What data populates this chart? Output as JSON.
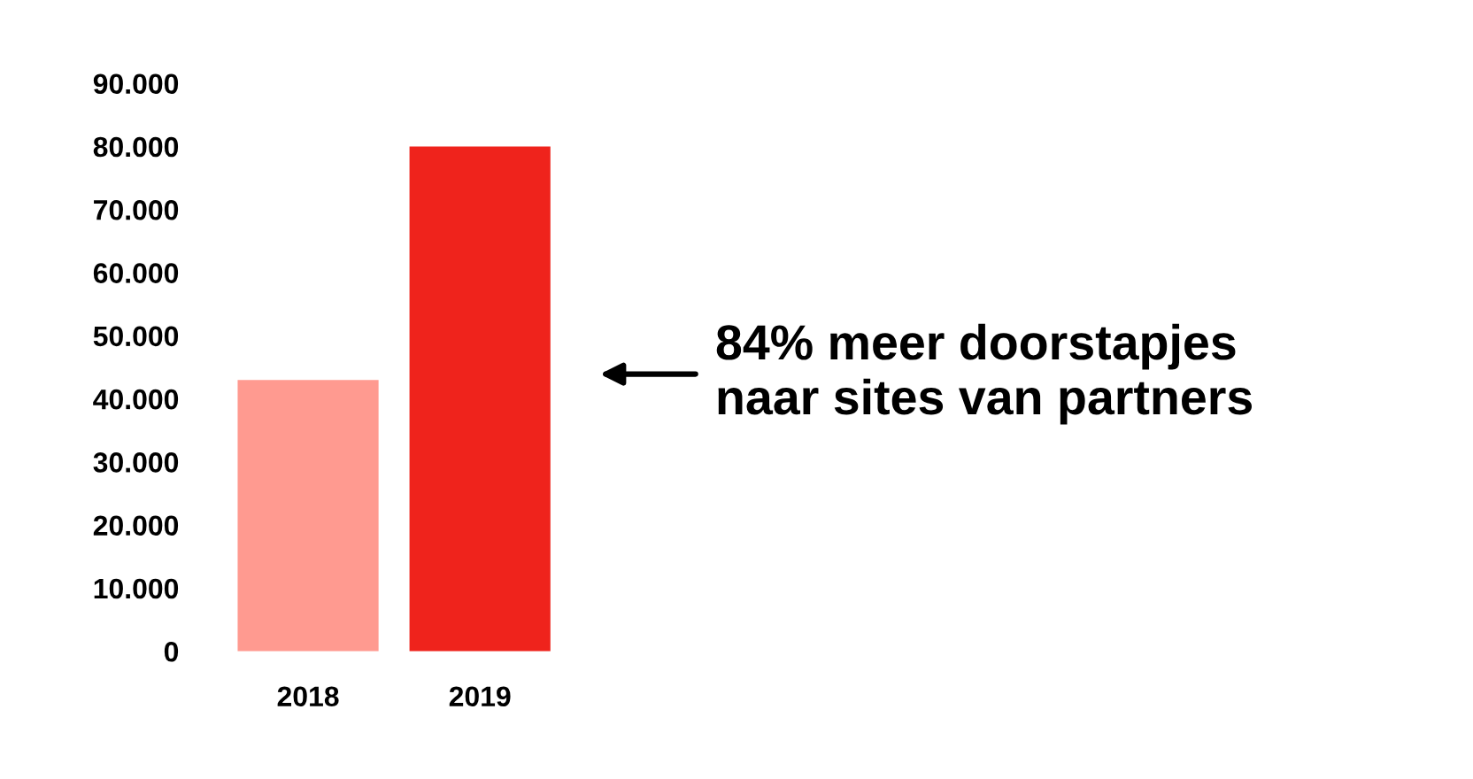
{
  "chart_data": {
    "type": "bar",
    "categories": [
      "2018",
      "2019"
    ],
    "values": [
      43000,
      80000
    ],
    "colors": [
      "#ff9a90",
      "#ef231c"
    ],
    "ylim": [
      0,
      90000
    ],
    "yticks": [
      {
        "value": 0,
        "label": "0"
      },
      {
        "value": 10000,
        "label": "10.000"
      },
      {
        "value": 20000,
        "label": "20.000"
      },
      {
        "value": 30000,
        "label": "30.000"
      },
      {
        "value": 40000,
        "label": "40.000"
      },
      {
        "value": 50000,
        "label": "50.000"
      },
      {
        "value": 60000,
        "label": "60.000"
      },
      {
        "value": 70000,
        "label": "70.000"
      },
      {
        "value": 80000,
        "label": "80.000"
      },
      {
        "value": 90000,
        "label": "90.000"
      }
    ],
    "grid": false,
    "legend": false,
    "annotations": [
      "84% meer doorstapjes\nnaar sites van partners"
    ]
  }
}
